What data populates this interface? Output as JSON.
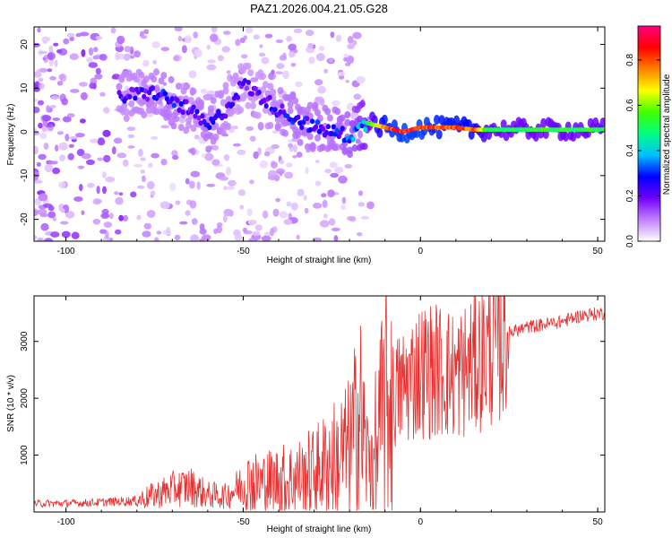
{
  "figure_title": "PAZ1.2026.004.21.05.G28",
  "chart_data": [
    {
      "type": "heatmap",
      "title": "PAZ1.2026.004.21.05.G28",
      "xlabel": "Height of straight line (km)",
      "ylabel": "Frequency (Hz)",
      "xlim": [
        -109,
        52
      ],
      "ylim": [
        -25,
        24
      ],
      "x_ticks": [
        -100,
        -50,
        0,
        50
      ],
      "y_ticks": [
        -20,
        -10,
        0,
        10,
        20
      ],
      "colorbar": {
        "label": "Normalized spectral amplitude",
        "range": [
          0,
          0.95
        ],
        "ticks": [
          0.0,
          0.2,
          0.4,
          0.6,
          0.8
        ],
        "colors": [
          "#ffffff",
          "#c080ff",
          "#7000ff",
          "#0000ff",
          "#00c0ff",
          "#00ff80",
          "#40ff00",
          "#ffff00",
          "#ff8000",
          "#ff0000",
          "#ff0080"
        ]
      },
      "ridge": {
        "x": [
          -85,
          -75,
          -70,
          -65,
          -60,
          -55,
          -50,
          -45,
          -40,
          -35,
          -30,
          -25,
          -20,
          -15,
          -10,
          -5,
          0,
          5,
          10,
          15,
          20,
          30,
          40,
          52
        ],
        "frequency": [
          8,
          9,
          7,
          5,
          1,
          5,
          11,
          8,
          5,
          3,
          1,
          0,
          -1,
          2,
          1,
          0,
          1,
          1,
          1,
          0.5,
          0.5,
          0.5,
          0.5,
          0.5
        ],
        "amplitude": [
          0.25,
          0.28,
          0.3,
          0.25,
          0.3,
          0.25,
          0.22,
          0.22,
          0.28,
          0.3,
          0.3,
          0.3,
          0.35,
          0.5,
          0.85,
          0.9,
          0.9,
          0.85,
          0.85,
          0.8,
          0.55,
          0.55,
          0.55,
          0.55
        ]
      }
    },
    {
      "type": "line",
      "title": "",
      "xlabel": "Height of straight line (km)",
      "ylabel": "SNR (10 * v/v)",
      "xlim": [
        -109,
        52
      ],
      "ylim": [
        0,
        3800
      ],
      "x_ticks": [
        -100,
        -50,
        0,
        50
      ],
      "y_ticks": [
        1000,
        2000,
        3000
      ],
      "line_color": "#e83030",
      "series": [
        {
          "name": "SNR",
          "x": [
            -109,
            -100,
            -90,
            -80,
            -75,
            -70,
            -65,
            -60,
            -55,
            -50,
            -45,
            -40,
            -35,
            -30,
            -25,
            -20,
            -17,
            -15,
            -12,
            -10,
            -5,
            0,
            5,
            10,
            15,
            20,
            25,
            30,
            35,
            40,
            45,
            52
          ],
          "y": [
            150,
            150,
            170,
            200,
            300,
            400,
            450,
            300,
            280,
            500,
            500,
            550,
            600,
            700,
            900,
            1100,
            1700,
            900,
            1300,
            1900,
            2200,
            2500,
            2500,
            2400,
            2600,
            2900,
            3150,
            3250,
            3300,
            3350,
            3450,
            3500
          ]
        }
      ]
    }
  ]
}
